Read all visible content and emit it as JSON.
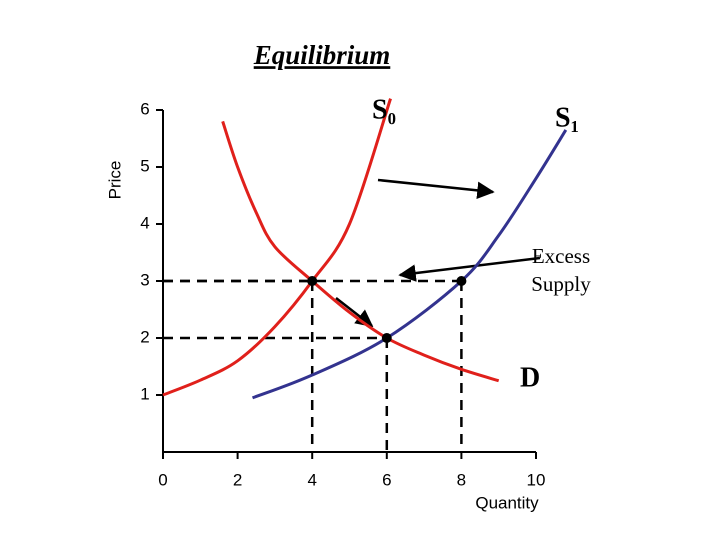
{
  "chart_data": {
    "type": "line",
    "title": "Equilibrium",
    "x_label": "Quantity",
    "y_label": "Price",
    "xlim": [
      0,
      10
    ],
    "ylim": [
      0,
      6
    ],
    "xticks": [
      0,
      2,
      4,
      6,
      8,
      10
    ],
    "yticks": [
      1,
      2,
      3,
      4,
      5,
      6
    ],
    "series": [
      {
        "name": "S₀",
        "color": "#e0201b",
        "x": [
          0,
          1,
          2,
          3,
          4,
          5,
          6.1
        ],
        "values": [
          1,
          1.26,
          1.6,
          2.2,
          3,
          4,
          6.2
        ]
      },
      {
        "name": "S₁",
        "color": "#33338f",
        "x": [
          2.4,
          4,
          6,
          8,
          9,
          10,
          10.8
        ],
        "values": [
          0.95,
          1.35,
          2,
          3,
          3.8,
          4.8,
          5.65
        ]
      },
      {
        "name": "D",
        "color": "#e0201b",
        "x": [
          1.6,
          2,
          2.5,
          3,
          4,
          5,
          6,
          7,
          8,
          9
        ],
        "values": [
          5.8,
          5.0,
          4.2,
          3.6,
          3,
          2.45,
          2.0,
          1.7,
          1.45,
          1.25
        ]
      }
    ],
    "points": {
      "x": [
        4,
        8,
        6
      ],
      "values": [
        3,
        3,
        2
      ]
    },
    "annotation": [
      "Excess",
      "Supply"
    ]
  }
}
